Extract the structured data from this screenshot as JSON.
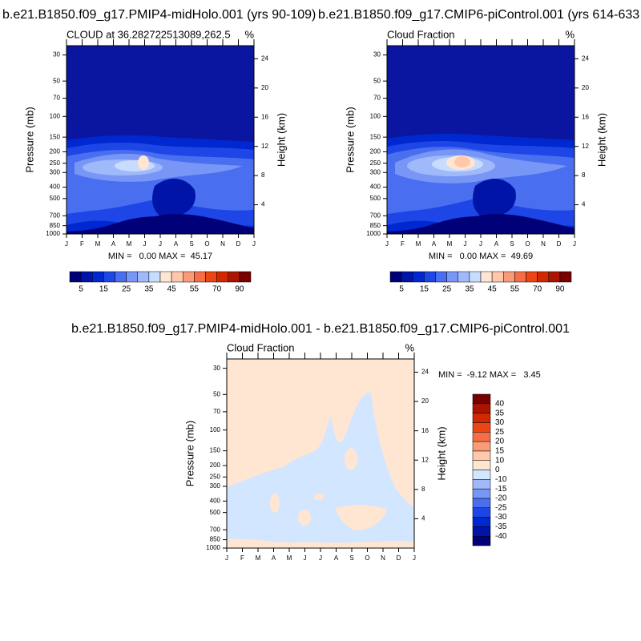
{
  "chart_data": [
    {
      "type": "contour",
      "title": "b.e21.B1850.f09_g17.PMIP4-midHolo.001 (yrs 90-109)",
      "left_string": "CLOUD at 36.282722513089,262.5",
      "right_string": "%",
      "stats": "MIN =   0.00 MAX =  45.17",
      "y_label": "Pressure (mb)",
      "y2_label": "Height (km)",
      "categories": [
        "J",
        "F",
        "M",
        "A",
        "M",
        "J",
        "J",
        "A",
        "S",
        "O",
        "N",
        "D",
        "J"
      ],
      "ylim": [
        1000,
        25
      ],
      "ylog": true,
      "yticks": [
        30,
        50,
        70,
        100,
        150,
        200,
        250,
        300,
        400,
        500,
        700,
        850,
        1000
      ],
      "y2lim": [
        0,
        25.8
      ],
      "y2ticks": [
        4,
        8,
        12,
        16,
        20,
        24
      ],
      "colorbar": {
        "orientation": "horizontal",
        "levels": [
          5,
          10,
          15,
          20,
          25,
          30,
          35,
          40,
          45,
          50,
          55,
          60,
          70,
          80,
          90
        ],
        "colors": [
          "#000078",
          "#0014a8",
          "#0028d0",
          "#1e46e6",
          "#4a6ef0",
          "#7896f5",
          "#a0b9fa",
          "#c8dcff",
          "#ffe6d2",
          "#ffc8aa",
          "#fa9b78",
          "#f56e46",
          "#eb4614",
          "#d22800",
          "#aa1400",
          "#780000"
        ]
      }
    },
    {
      "type": "contour",
      "title": "b.e21.B1850.f09_g17.CMIP6-piControl.001 (yrs 614-633",
      "left_string": "Cloud Fraction",
      "right_string": "%",
      "stats": "MIN =   0.00 MAX =  49.69",
      "y_label": "Pressure (mb)",
      "y2_label": "Height (km)",
      "categories": [
        "J",
        "F",
        "M",
        "A",
        "M",
        "J",
        "J",
        "A",
        "S",
        "O",
        "N",
        "D",
        "J"
      ],
      "ylim": [
        1000,
        25
      ],
      "ylog": true,
      "yticks": [
        30,
        50,
        70,
        100,
        150,
        200,
        250,
        300,
        400,
        500,
        700,
        850,
        1000
      ],
      "y2lim": [
        0,
        25.8
      ],
      "y2ticks": [
        4,
        8,
        12,
        16,
        20,
        24
      ],
      "colorbar": {
        "orientation": "horizontal",
        "levels": [
          5,
          10,
          15,
          20,
          25,
          30,
          35,
          40,
          45,
          50,
          55,
          60,
          70,
          80,
          90
        ],
        "colors": [
          "#000078",
          "#0014a8",
          "#0028d0",
          "#1e46e6",
          "#4a6ef0",
          "#7896f5",
          "#a0b9fa",
          "#c8dcff",
          "#ffe6d2",
          "#ffc8aa",
          "#fa9b78",
          "#f56e46",
          "#eb4614",
          "#d22800",
          "#aa1400",
          "#780000"
        ]
      }
    },
    {
      "type": "contour",
      "title": "b.e21.B1850.f09_g17.PMIP4-midHolo.001 - b.e21.B1850.f09_g17.CMIP6-piControl.001",
      "left_string": "Cloud Fraction",
      "right_string": "%",
      "stats": "MIN =  -9.12 MAX =   3.45",
      "y_label": "Pressure (mb)",
      "y2_label": "Height (km)",
      "categories": [
        "J",
        "F",
        "M",
        "A",
        "M",
        "J",
        "J",
        "A",
        "S",
        "O",
        "N",
        "D",
        "J"
      ],
      "ylim": [
        1000,
        25
      ],
      "ylog": true,
      "yticks": [
        30,
        50,
        70,
        100,
        150,
        200,
        250,
        300,
        400,
        500,
        700,
        850,
        1000
      ],
      "y2lim": [
        0,
        25.8
      ],
      "y2ticks": [
        4,
        8,
        12,
        16,
        20,
        24
      ],
      "colorbar": {
        "orientation": "vertical",
        "levels": [
          -40,
          -35,
          -30,
          -25,
          -20,
          -15,
          -10,
          0,
          10,
          15,
          20,
          25,
          30,
          35,
          40
        ],
        "colors": [
          "#000078",
          "#0014a8",
          "#0028d0",
          "#1e46e6",
          "#4a6ef0",
          "#7896f5",
          "#a0b9fa",
          "#d2e6ff",
          "#ffe6d2",
          "#ffc8aa",
          "#fa9b78",
          "#f56e46",
          "#eb4614",
          "#d22800",
          "#aa1400",
          "#780000"
        ]
      }
    }
  ]
}
